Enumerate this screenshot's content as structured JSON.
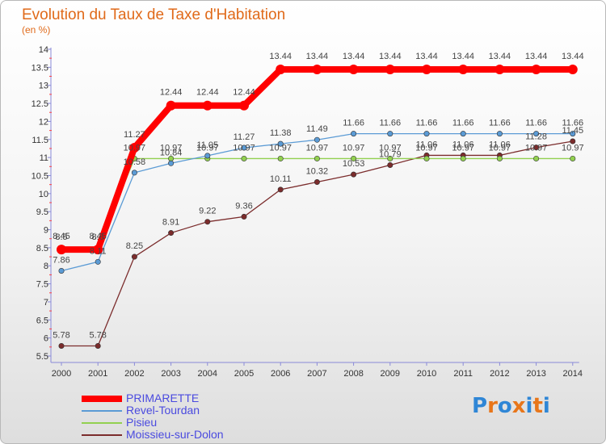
{
  "title": "Evolution du Taux de Taxe d'Habitation",
  "unit_label": "(en %)",
  "brand": {
    "letters": [
      "P",
      "r",
      "o",
      "x",
      "i",
      "t",
      "i"
    ],
    "letter_colors": [
      "#2f86d6",
      "#e8761a",
      "#2f86d6",
      "#e8761a",
      "#2f86d6",
      "#e8761a",
      "#2f86d6"
    ]
  },
  "chart_data": {
    "type": "line",
    "title": "Evolution du Taux de Taxe d'Habitation",
    "ylabel": "(en %)",
    "xlabel": "",
    "x": [
      "2000",
      "2001",
      "2002",
      "2003",
      "2004",
      "2005",
      "2006",
      "2007",
      "2008",
      "2009",
      "2010",
      "2011",
      "2012",
      "2013",
      "2014"
    ],
    "ylim": [
      5.5,
      14
    ],
    "yticks": [
      "5.5",
      "6",
      "6.5",
      "7",
      "7.5",
      "8",
      "8.5",
      "9",
      "9.5",
      "10",
      "10.5",
      "11",
      "11.5",
      "12",
      "12.5",
      "13",
      "13.5",
      "14"
    ],
    "grid": false,
    "legend_position": "bottom-left",
    "series": [
      {
        "name": "PRIMARETTE",
        "color": "#ff0000",
        "values": [
          8.45,
          8.45,
          11.27,
          12.44,
          12.44,
          12.44,
          13.44,
          13.44,
          13.44,
          13.44,
          13.44,
          13.44,
          13.44,
          13.44,
          13.44
        ],
        "labels": [
          "8.45",
          "8.45",
          "11.27",
          "12.44",
          "12.44",
          "12.44",
          "13.44",
          "13.44",
          "13.44",
          "13.44",
          "13.44",
          "13.44",
          "13.44",
          "13.44",
          "13.44"
        ]
      },
      {
        "name": "Revel-Tourdan",
        "color": "#5b9bd5",
        "values": [
          7.86,
          8.11,
          10.58,
          10.84,
          11.05,
          11.27,
          11.38,
          11.49,
          11.66,
          11.66,
          11.66,
          11.66,
          11.66,
          11.66,
          11.66
        ],
        "labels": [
          "7.86",
          "8.11",
          "10.58",
          "10.84",
          "11.05",
          "11.27",
          "11.38",
          "11.49",
          "11.66",
          "11.66",
          "11.66",
          "11.66",
          "11.66",
          "11.66",
          "11.66"
        ]
      },
      {
        "name": "Pisieu",
        "color": "#92d050",
        "values": [
          8.5,
          8.5,
          10.97,
          10.97,
          10.97,
          10.97,
          10.97,
          10.97,
          10.97,
          10.97,
          10.97,
          10.97,
          10.97,
          10.97,
          10.97
        ],
        "labels": [
          "8.5",
          "8.5",
          "10.97",
          "10.97",
          "10.97",
          "10.97",
          "10.97",
          "10.97",
          "10.97",
          "10.97",
          "10.97",
          "10.97",
          "10.97",
          "10.97",
          "10.97"
        ]
      },
      {
        "name": "Moissieu-sur-Dolon",
        "color": "#7b2c2c",
        "values": [
          5.78,
          5.78,
          8.25,
          8.91,
          9.22,
          9.36,
          10.11,
          10.32,
          10.53,
          10.79,
          11.06,
          11.06,
          11.06,
          11.28,
          11.45
        ],
        "labels": [
          "5.78",
          "5.78",
          "8.25",
          "8.91",
          "9.22",
          "9.36",
          "10.11",
          "10.32",
          "10.53",
          "10.79",
          "11.06",
          "11.06",
          "11.06",
          "11.28",
          "11.45"
        ]
      }
    ]
  }
}
